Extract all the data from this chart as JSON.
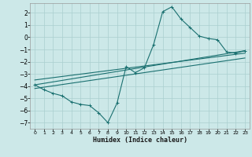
{
  "xlabel": "Humidex (Indice chaleur)",
  "ylabel": "",
  "bg_color": "#cce8e8",
  "grid_color": "#aacfcf",
  "line_color": "#1a7070",
  "xlim": [
    -0.5,
    23.5
  ],
  "ylim": [
    -7.5,
    2.8
  ],
  "xticks": [
    0,
    1,
    2,
    3,
    4,
    5,
    6,
    7,
    8,
    9,
    10,
    11,
    12,
    13,
    14,
    15,
    16,
    17,
    18,
    19,
    20,
    21,
    22,
    23
  ],
  "yticks": [
    -7,
    -6,
    -5,
    -4,
    -3,
    -2,
    -1,
    0,
    1,
    2
  ],
  "curve1_x": [
    0,
    1,
    2,
    3,
    4,
    5,
    6,
    7,
    8,
    9,
    10,
    11,
    12,
    13,
    14,
    15,
    16,
    17,
    18,
    19,
    20,
    21,
    22,
    23
  ],
  "curve1_y": [
    -3.9,
    -4.3,
    -4.6,
    -4.8,
    -5.3,
    -5.5,
    -5.6,
    -6.2,
    -7.0,
    -5.4,
    -2.4,
    -2.9,
    -2.5,
    -0.6,
    2.1,
    2.5,
    1.5,
    0.8,
    0.1,
    -0.1,
    -0.2,
    -1.2,
    -1.3,
    -1.1
  ],
  "curve2_x": [
    0,
    23
  ],
  "curve2_y": [
    -3.9,
    -1.1
  ],
  "curve3_x": [
    0,
    23
  ],
  "curve3_y": [
    -3.5,
    -1.3
  ],
  "curve4_x": [
    0,
    23
  ],
  "curve4_y": [
    -4.2,
    -1.7
  ]
}
